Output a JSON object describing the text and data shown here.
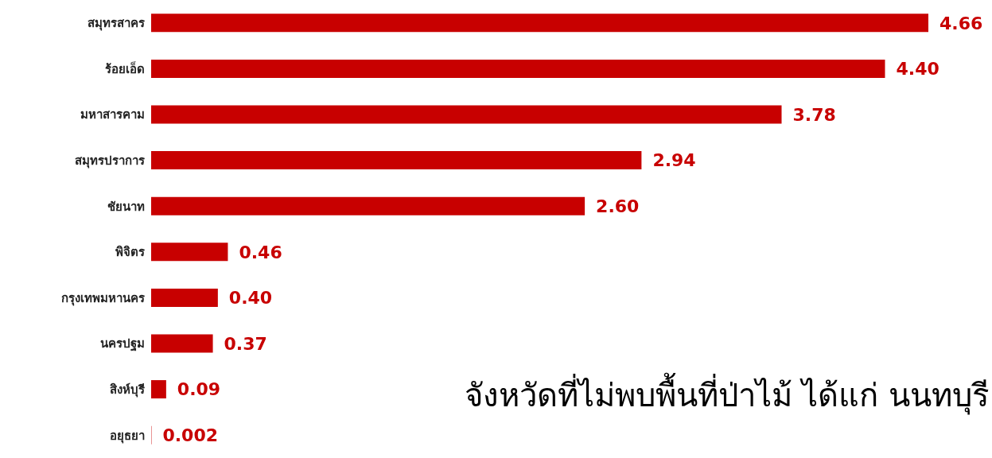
{
  "chart_data": {
    "type": "bar",
    "orientation": "horizontal",
    "categories": [
      "สมุทรสาคร",
      "ร้อยเอ็ด",
      "มหาสารคาม",
      "สมุทรปราการ",
      "ชัยนาท",
      "พิจิตร",
      "กรุงเทพมหานคร",
      "นครปฐม",
      "สิงห์บุรี",
      "อยุธยา"
    ],
    "values": [
      4.66,
      4.4,
      3.78,
      2.94,
      2.6,
      0.46,
      0.4,
      0.37,
      0.09,
      0.002
    ],
    "value_labels": [
      "4.66",
      "4.40",
      "3.78",
      "2.94",
      "2.60",
      "0.46",
      "0.40",
      "0.37",
      "0.09",
      "0.002"
    ],
    "color": "#c80000",
    "annotations": [
      "จังหวัดที่ไม่พบพื้นที่ป่าไม้ ได้แก่ นนทบุรี"
    ]
  }
}
